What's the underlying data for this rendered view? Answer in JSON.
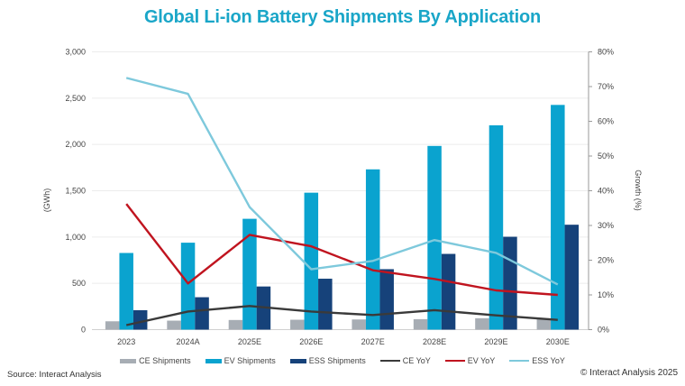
{
  "chart_data": {
    "type": "bar",
    "title": "Global Li-ion Battery Shipments By Application",
    "xlabel": "",
    "ylabel": "(GWh)",
    "y2label": "Growth (%)",
    "ylim": [
      0,
      3000
    ],
    "y2lim": [
      0,
      80
    ],
    "yticks": [
      "0",
      "500",
      "1,000",
      "1,500",
      "2,000",
      "2,500",
      "3,000"
    ],
    "y2ticks": [
      "0%",
      "10%",
      "20%",
      "30%",
      "40%",
      "50%",
      "60%",
      "70%",
      "80%"
    ],
    "grid": true,
    "legend_position": "bottom",
    "categories": [
      "2023",
      "2024A",
      "2025E",
      "2026E",
      "2027E",
      "2028E",
      "2029E",
      "2030E"
    ],
    "series": [
      {
        "name": "CE Shipments",
        "kind": "bar",
        "axis": "left",
        "color": "#a7adb4",
        "values": [
          90,
          97,
          104,
          107,
          110,
          113,
          123,
          120
        ]
      },
      {
        "name": "EV Shipments",
        "kind": "bar",
        "axis": "left",
        "color": "#0aa3cf",
        "values": [
          828,
          939,
          1197,
          1479,
          1731,
          1984,
          2207,
          2427
        ]
      },
      {
        "name": "ESS Shipments",
        "kind": "bar",
        "axis": "left",
        "color": "#16427a",
        "values": [
          210,
          350,
          466,
          550,
          653,
          818,
          1003,
          1133
        ]
      },
      {
        "name": "CE YoY",
        "kind": "line",
        "axis": "right",
        "color": "#3a3a3a",
        "values": [
          1.3,
          5.2,
          6.8,
          5.2,
          4.2,
          5.6,
          4.1,
          2.8
        ]
      },
      {
        "name": "EV YoY",
        "kind": "line",
        "axis": "right",
        "color": "#c0141f",
        "values": [
          36.2,
          13.3,
          27.3,
          24.0,
          17.1,
          14.6,
          11.3,
          10.0
        ]
      },
      {
        "name": "ESS YoY",
        "kind": "line",
        "axis": "right",
        "color": "#7ec9dc",
        "values": [
          72.5,
          67.9,
          35.3,
          17.4,
          19.8,
          25.8,
          22.1,
          13.0
        ]
      }
    ]
  },
  "footer": {
    "source": "Source: Interact Analysis",
    "copyright": "© Interact Analysis 2025"
  }
}
